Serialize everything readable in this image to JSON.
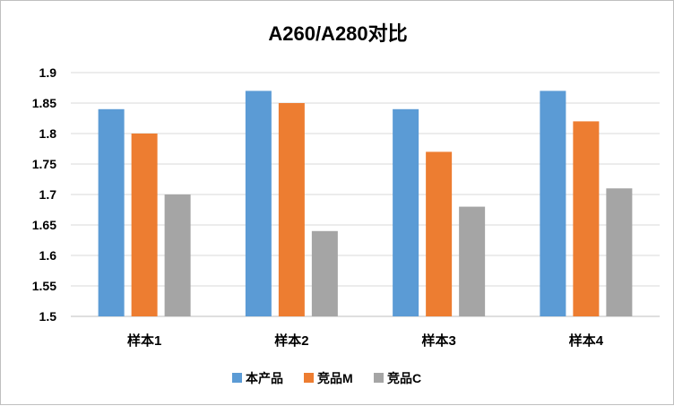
{
  "chart_data": {
    "type": "bar",
    "title": "A260/A280对比",
    "categories": [
      "样本1",
      "样本2",
      "样本3",
      "样本4"
    ],
    "series": [
      {
        "name": "本产品",
        "color": "#5b9bd5",
        "values": [
          1.84,
          1.87,
          1.84,
          1.87
        ]
      },
      {
        "name": "竞品M",
        "color": "#ed7d31",
        "values": [
          1.8,
          1.85,
          1.77,
          1.82
        ]
      },
      {
        "name": "竞品C",
        "color": "#a5a5a5",
        "values": [
          1.7,
          1.64,
          1.68,
          1.71
        ]
      }
    ],
    "ylim": [
      1.5,
      1.9
    ],
    "yticks": [
      "1.5",
      "1.55",
      "1.6",
      "1.65",
      "1.7",
      "1.75",
      "1.8",
      "1.85",
      "1.9"
    ],
    "grid": true,
    "legend_position": "bottom"
  }
}
